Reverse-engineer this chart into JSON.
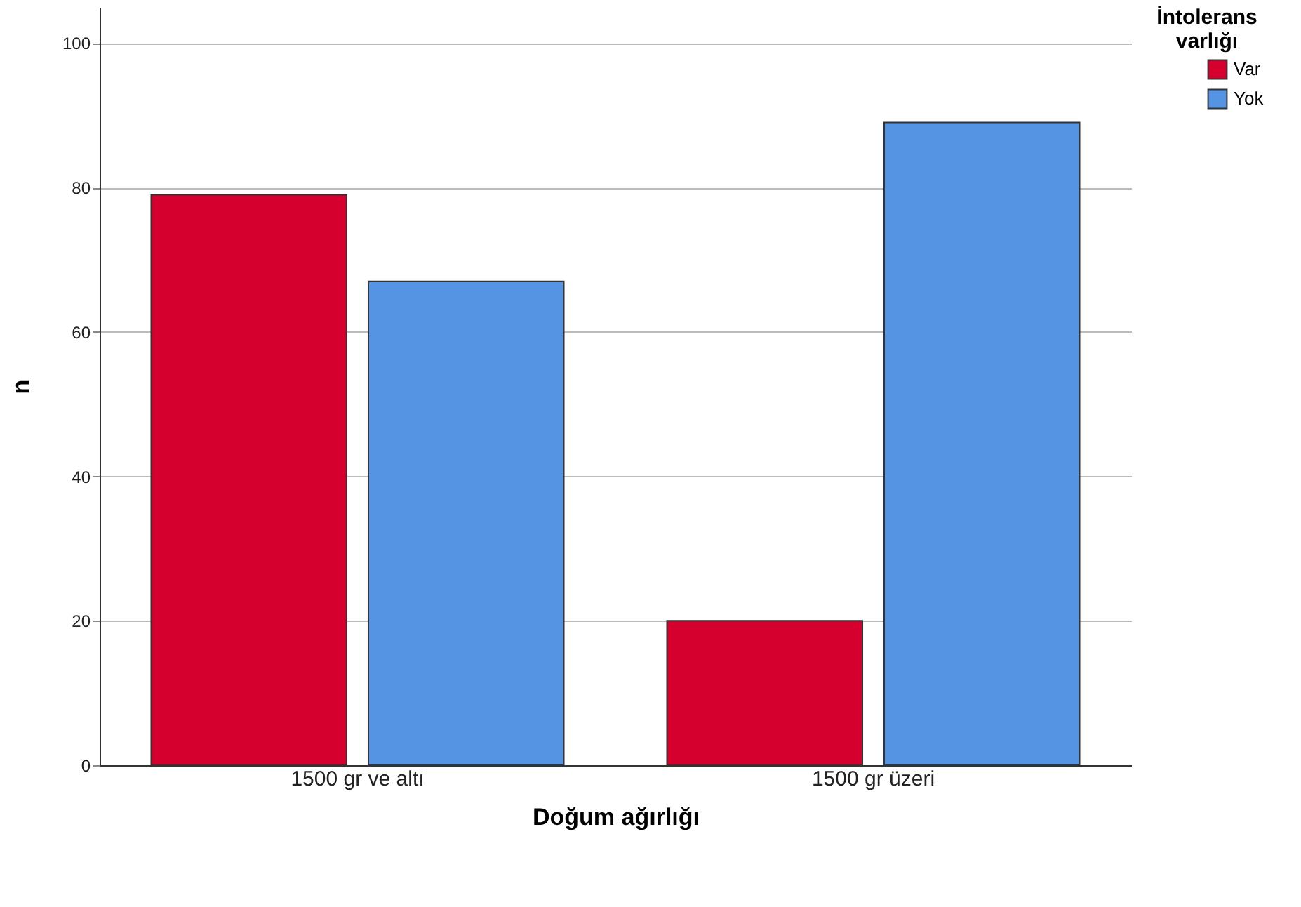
{
  "chart_data": {
    "type": "bar",
    "xlabel": "Doğum ağırlığı",
    "ylabel": "n",
    "legend_title": "İntolerans varlığı",
    "categories": [
      "1500 gr ve altı",
      "1500 gr üzeri"
    ],
    "series": [
      {
        "name": "Var",
        "color": "#d5002e",
        "values": [
          79,
          20
        ]
      },
      {
        "name": "Yok",
        "color": "#5494e3",
        "values": [
          67,
          89
        ]
      }
    ],
    "ylim": [
      0,
      105
    ],
    "yticks": [
      0,
      20,
      40,
      60,
      80,
      100
    ],
    "grid": "y",
    "legend": "top right"
  }
}
